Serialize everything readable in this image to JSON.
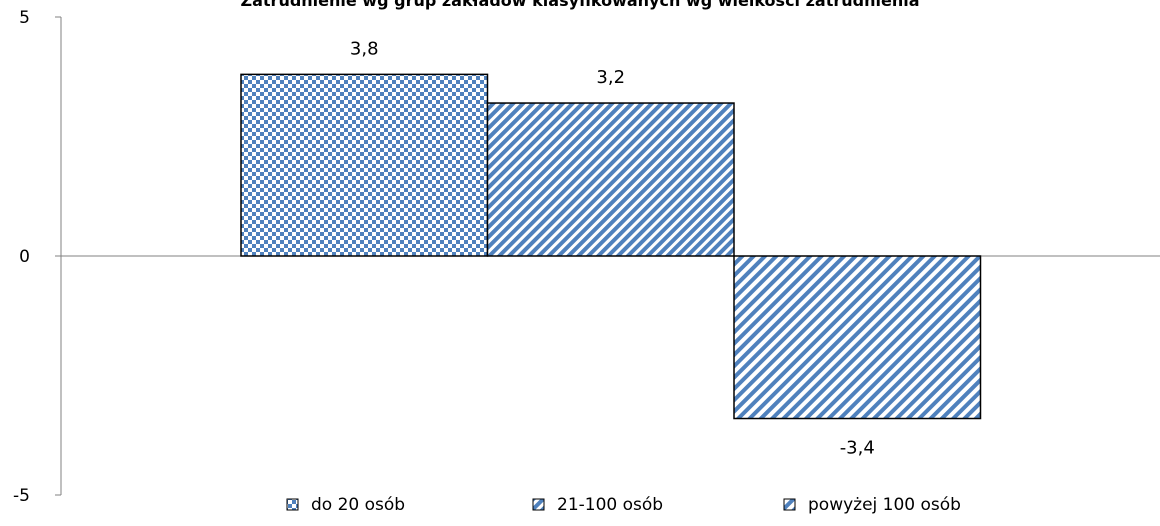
{
  "chart_data": {
    "type": "bar",
    "title": "Zatrudnienie wg grup zakładów klasyfikowanych wg wielkości zatrudnienia",
    "categories": [
      ""
    ],
    "series": [
      {
        "name": "do 20 osób",
        "values": [
          3.8
        ],
        "label": "3,8",
        "pattern": "checker"
      },
      {
        "name": "21-100 osób",
        "values": [
          3.2
        ],
        "label": "3,2",
        "pattern": "diag-dense"
      },
      {
        "name": "powyżej 100 osób",
        "values": [
          -3.4
        ],
        "label": "-3,4",
        "pattern": "diag"
      }
    ],
    "yticks": [
      {
        "value": 5,
        "label": "5"
      },
      {
        "value": 0,
        "label": "0"
      },
      {
        "value": -5,
        "label": "-5"
      }
    ],
    "ylim": [
      -5,
      5
    ],
    "grid": false,
    "legend_position": "bottom",
    "colors": {
      "fill": "#4f81bd",
      "background": "#ffffff",
      "border": "#000000",
      "axis": "#808080"
    }
  }
}
